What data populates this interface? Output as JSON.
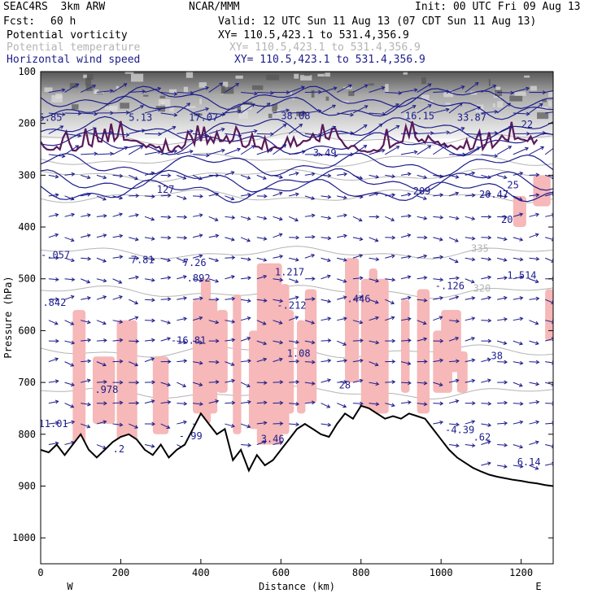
{
  "header": {
    "model": "SEAC4RS  3km ARW",
    "center": "NCAR/MMM",
    "init": "Init: 00 UTC Fri 09 Aug 13",
    "fcst_label": "Fcst:",
    "fcst_value": "60 h",
    "valid": "Valid: 12 UTC Sun 11 Aug 13 (07 CDT Sun 11 Aug 13)"
  },
  "fields": [
    {
      "name": "Potential vorticity",
      "xy": "XY= 110.5,423.1 to 531.4,356.9",
      "color": "#000000"
    },
    {
      "name": "Potential temperature",
      "xy": "XY= 110.5,423.1 to 531.4,356.9",
      "color": "#b4b4b4"
    },
    {
      "name": "Horizontal wind speed",
      "xy": "XY= 110.5,423.1 to 531.4,356.9",
      "color": "#1c1c8c"
    }
  ],
  "chart_data": {
    "type": "line",
    "title": "",
    "xlabel": "Distance (km)",
    "ylabel": "Pressure (hPa)",
    "xlim": [
      0,
      1280
    ],
    "ylim": [
      1050,
      100
    ],
    "xticks": [
      0,
      200,
      400,
      600,
      800,
      1000,
      1200
    ],
    "yticks": [
      100,
      200,
      300,
      400,
      500,
      600,
      700,
      800,
      900,
      1000
    ],
    "x_end_labels": {
      "left": "W",
      "right": "E"
    },
    "colors": {
      "pv_fill": "#f6b8b8",
      "pv_contour": "#5a1a5a",
      "theta": "#b4b4b4",
      "wind": "#1c1c8c",
      "terrain": "#000000"
    },
    "terrain": {
      "x": [
        0,
        20,
        40,
        60,
        80,
        100,
        120,
        140,
        160,
        180,
        200,
        220,
        240,
        260,
        280,
        300,
        320,
        340,
        360,
        380,
        400,
        420,
        440,
        460,
        480,
        500,
        520,
        540,
        560,
        580,
        600,
        620,
        640,
        660,
        680,
        700,
        720,
        740,
        760,
        780,
        800,
        820,
        840,
        860,
        880,
        900,
        920,
        940,
        960,
        980,
        1000,
        1020,
        1040,
        1060,
        1080,
        1100,
        1120,
        1140,
        1160,
        1180,
        1200,
        1220,
        1240,
        1260,
        1280
      ],
      "p": [
        830,
        835,
        820,
        840,
        820,
        800,
        830,
        845,
        830,
        815,
        805,
        800,
        810,
        830,
        840,
        820,
        845,
        830,
        820,
        790,
        760,
        780,
        800,
        790,
        850,
        830,
        870,
        840,
        860,
        850,
        830,
        810,
        790,
        780,
        790,
        800,
        805,
        780,
        760,
        770,
        745,
        750,
        760,
        770,
        765,
        770,
        760,
        765,
        770,
        790,
        810,
        830,
        845,
        855,
        865,
        872,
        878,
        882,
        885,
        888,
        890,
        893,
        895,
        898,
        900
      ]
    },
    "wind_speed_labels": [
      {
        "x": -5,
        "p": 195,
        "text": "5.85"
      },
      {
        "x": 220,
        "p": 195,
        "text": "5.13"
      },
      {
        "x": 370,
        "p": 195,
        "text": "17.07"
      },
      {
        "x": 600,
        "p": 192,
        "text": "38.08"
      },
      {
        "x": 910,
        "p": 192,
        "text": "16.15"
      },
      {
        "x": 1040,
        "p": 195,
        "text": "33.87"
      },
      {
        "x": 1200,
        "p": 208,
        "text": "22"
      },
      {
        "x": 680,
        "p": 263,
        "text": "3.49"
      },
      {
        "x": 290,
        "p": 334,
        "text": "127"
      },
      {
        "x": 930,
        "p": 337,
        "text": "209"
      },
      {
        "x": 1095,
        "p": 343,
        "text": "20.47"
      },
      {
        "x": 1165,
        "p": 325,
        "text": "25"
      },
      {
        "x": 1150,
        "p": 392,
        "text": "20"
      },
      {
        "x": 0,
        "p": 460,
        "text": "-.057"
      },
      {
        "x": 225,
        "p": 470,
        "text": "7.81"
      },
      {
        "x": 355,
        "p": 475,
        "text": "7.26"
      },
      {
        "x": 365,
        "p": 505,
        "text": ".892"
      },
      {
        "x": 585,
        "p": 493,
        "text": "1.217"
      },
      {
        "x": 1165,
        "p": 500,
        "text": "1.514"
      },
      {
        "x": 5,
        "p": 552,
        "text": ".842"
      },
      {
        "x": 590,
        "p": 558,
        "text": "-.212"
      },
      {
        "x": 765,
        "p": 545,
        "text": ".446"
      },
      {
        "x": 985,
        "p": 520,
        "text": "-.126"
      },
      {
        "x": 325,
        "p": 625,
        "text": "-16.81"
      },
      {
        "x": 615,
        "p": 650,
        "text": "1.08"
      },
      {
        "x": 1110,
        "p": 655,
        "text": ".38"
      },
      {
        "x": 135,
        "p": 720,
        "text": ".978"
      },
      {
        "x": 745,
        "p": 712,
        "text": "28"
      },
      {
        "x": -5,
        "p": 786,
        "text": "11.01"
      },
      {
        "x": 345,
        "p": 810,
        "text": "-.99"
      },
      {
        "x": 1010,
        "p": 798,
        "text": "-4.39"
      },
      {
        "x": 1080,
        "p": 812,
        "text": ".62"
      },
      {
        "x": 180,
        "p": 835,
        "text": ".2"
      },
      {
        "x": 550,
        "p": 815,
        "text": "3.46"
      },
      {
        "x": 1190,
        "p": 860,
        "text": "6.14"
      }
    ],
    "theta_labels": [
      {
        "x": 1075,
        "p": 448,
        "text": "335"
      },
      {
        "x": 1080,
        "p": 525,
        "text": "320"
      }
    ]
  }
}
